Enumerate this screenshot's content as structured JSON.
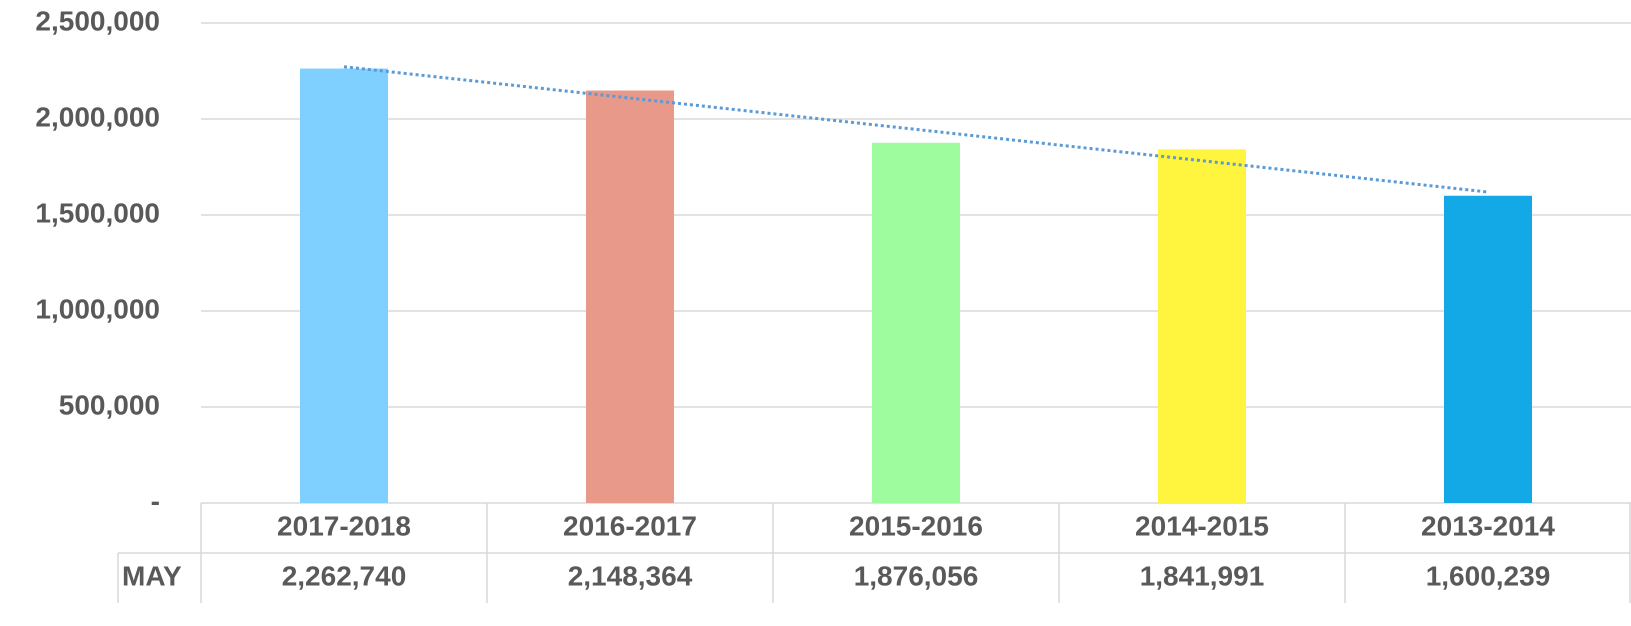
{
  "chart_data": {
    "type": "bar",
    "categories": [
      "2017-2018",
      "2016-2017",
      "2015-2016",
      "2014-2015",
      "2013-2014"
    ],
    "series": [
      {
        "name": "MAY",
        "colors": [
          "#7fd0ff",
          "#e8998a",
          "#9efc9e",
          "#fff53f",
          "#13a9e6"
        ],
        "values": [
          2262740,
          2148364,
          1876056,
          1841991,
          1600239
        ],
        "value_labels": [
          "2,262,740",
          "2,148,364",
          "1,876,056",
          "1,841,991",
          "1,600,239"
        ]
      }
    ],
    "ylim": [
      0,
      2500000
    ],
    "yticks": [
      {
        "value": 0,
        "label": "-"
      },
      {
        "value": 500000,
        "label": "500,000"
      },
      {
        "value": 1000000,
        "label": "1,000,000"
      },
      {
        "value": 1500000,
        "label": "1,500,000"
      },
      {
        "value": 2000000,
        "label": "2,000,000"
      },
      {
        "value": 2500000,
        "label": "2,500,000"
      }
    ],
    "grid": true,
    "trendline": {
      "type": "linear",
      "color": "#5b9bd5"
    },
    "data_table": true
  }
}
